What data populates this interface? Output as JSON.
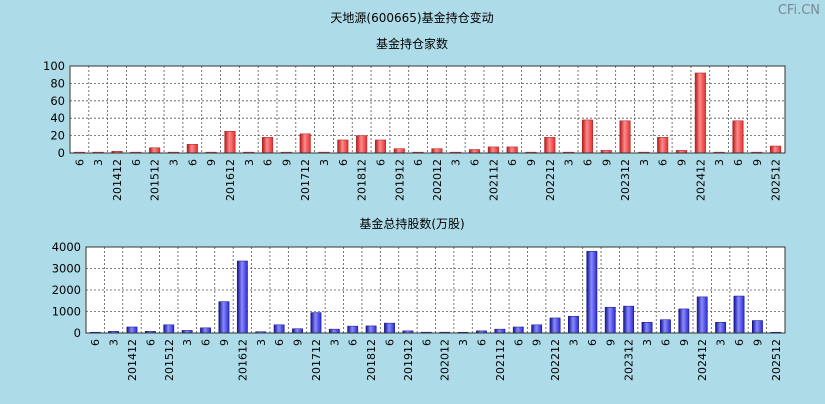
{
  "page_title": "天地源(600665)基金持仓变动",
  "watermark": "CFi.CN",
  "chart_data": [
    {
      "type": "bar",
      "title": "基金持仓家数",
      "ylim": [
        0,
        100
      ],
      "yticks": [
        0,
        20,
        40,
        60,
        80,
        100
      ],
      "grid": true,
      "bar_color": "#e03030",
      "categories": [
        "6",
        "3",
        "201412",
        "6",
        "201512",
        "3",
        "6",
        "9",
        "201612",
        "3",
        "6",
        "9",
        "201712",
        "3",
        "6",
        "201812",
        "6",
        "201912",
        "6",
        "202012",
        "3",
        "6",
        "202112",
        "6",
        "9",
        "202212",
        "3",
        "6",
        "9",
        "202312",
        "3",
        "6",
        "9",
        "202412",
        "3",
        "6",
        "9",
        "202512"
      ],
      "values": [
        1,
        1,
        2,
        1,
        6,
        1,
        10,
        1,
        25,
        1,
        18,
        1,
        22,
        1,
        15,
        20,
        15,
        5,
        1,
        5,
        1,
        4,
        7,
        7,
        1,
        18,
        1,
        38,
        3,
        37,
        1,
        18,
        3,
        92,
        1,
        37,
        1,
        8
      ]
    },
    {
      "type": "bar",
      "title": "基金总持股数(万股)",
      "ylim": [
        0,
        4000
      ],
      "yticks": [
        0,
        1000,
        2000,
        3000,
        4000
      ],
      "grid": true,
      "bar_color": "#2a2ad0",
      "categories": [
        "6",
        "3",
        "201412",
        "6",
        "201512",
        "3",
        "6",
        "9",
        "201612",
        "3",
        "6",
        "9",
        "201712",
        "3",
        "6",
        "201812",
        "6",
        "201912",
        "6",
        "202012",
        "3",
        "6",
        "202112",
        "6",
        "9",
        "202212",
        "3",
        "6",
        "9",
        "202312",
        "3",
        "6",
        "9",
        "202412",
        "3",
        "6",
        "9",
        "202512"
      ],
      "values": [
        30,
        80,
        280,
        80,
        380,
        120,
        240,
        1460,
        3350,
        60,
        380,
        200,
        950,
        180,
        320,
        330,
        460,
        100,
        40,
        40,
        20,
        100,
        180,
        280,
        380,
        700,
        780,
        3800,
        1200,
        1250,
        500,
        620,
        1120,
        1680,
        500,
        1720,
        580,
        20
      ]
    }
  ]
}
